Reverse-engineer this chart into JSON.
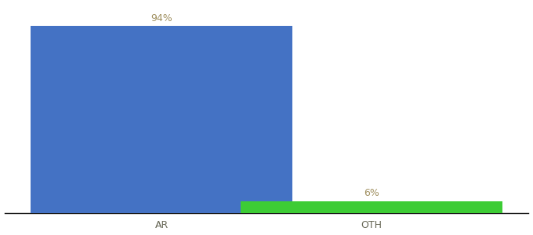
{
  "categories": [
    "AR",
    "OTH"
  ],
  "values": [
    94,
    6
  ],
  "bar_colors": [
    "#4472c4",
    "#3dcc35"
  ],
  "label_texts": [
    "94%",
    "6%"
  ],
  "background_color": "#ffffff",
  "ylim": [
    0,
    105
  ],
  "bar_width": 0.5,
  "figsize": [
    6.8,
    3.0
  ],
  "dpi": 100,
  "label_fontsize": 9,
  "tick_fontsize": 9,
  "label_color": "#a09060",
  "tick_color": "#666655",
  "x_positions": [
    0.25,
    0.65
  ]
}
